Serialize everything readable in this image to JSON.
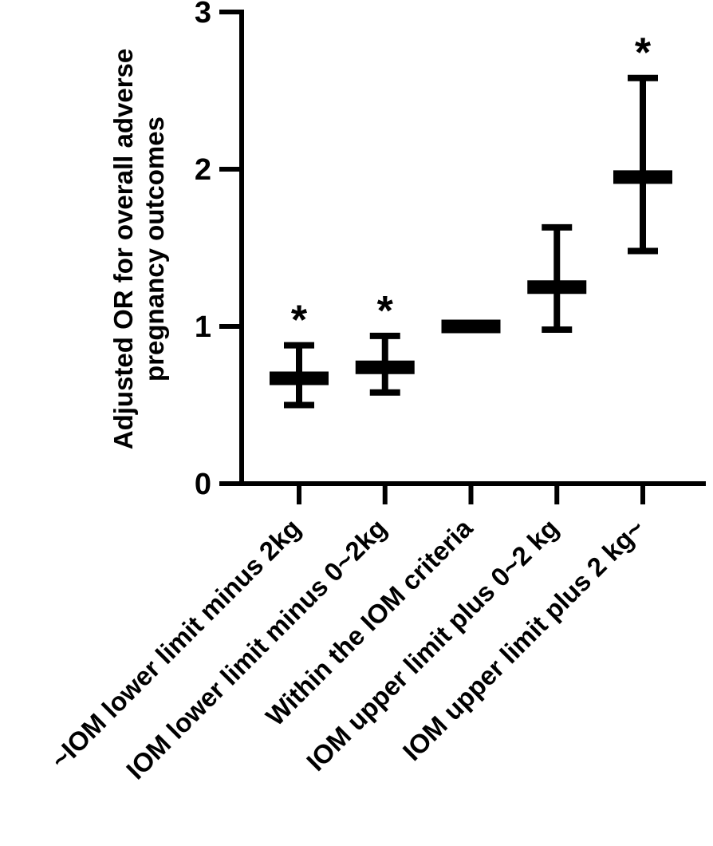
{
  "chart_data": {
    "type": "scatter",
    "ylabel_lines": [
      "Adjusted OR for overall adverse",
      "pregnancy outcomes"
    ],
    "xlabel": "",
    "ylim": [
      0,
      3
    ],
    "yticks": [
      "0",
      "1",
      "2",
      "3"
    ],
    "grid": false,
    "legend": "none",
    "categories": [
      "~IOM lower limit minus 2kg",
      "IOM lower limit minus 0~2kg",
      "Within the IOM criteria",
      "IOM upper limit plus 0~2 kg",
      "IOM upper limit plus 2 kg~"
    ],
    "values": [
      0.67,
      0.74,
      1.0,
      1.25,
      1.95
    ],
    "ci_lower": [
      0.5,
      0.58,
      1.0,
      0.98,
      1.48
    ],
    "ci_upper": [
      0.88,
      0.94,
      1.0,
      1.63,
      2.58
    ],
    "significance": [
      "*",
      "*",
      "",
      "",
      "*"
    ],
    "color": "#000000"
  }
}
